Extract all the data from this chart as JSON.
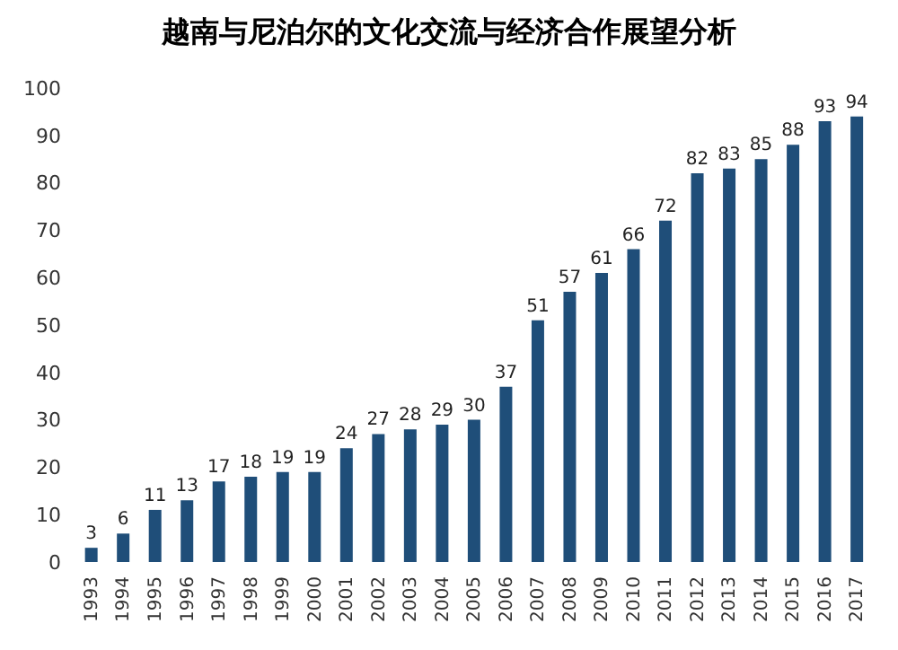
{
  "chart_data": {
    "type": "bar",
    "title": "越南与尼泊尔的文化交流与经济合作展望分析",
    "categories": [
      "1993",
      "1994",
      "1995",
      "1996",
      "1997",
      "1998",
      "1999",
      "2000",
      "2001",
      "2002",
      "2003",
      "2004",
      "2005",
      "2006",
      "2007",
      "2008",
      "2009",
      "2010",
      "2011",
      "2012",
      "2013",
      "2014",
      "2015",
      "2016",
      "2017"
    ],
    "values": [
      3,
      6,
      11,
      13,
      17,
      18,
      19,
      19,
      24,
      27,
      28,
      29,
      30,
      37,
      51,
      57,
      61,
      66,
      72,
      82,
      83,
      85,
      88,
      93,
      94
    ],
    "color": "#1f4e79",
    "ylim": [
      0,
      100
    ],
    "yticks": [
      0,
      10,
      20,
      30,
      40,
      50,
      60,
      70,
      80,
      90,
      100
    ],
    "data_labels": true
  }
}
